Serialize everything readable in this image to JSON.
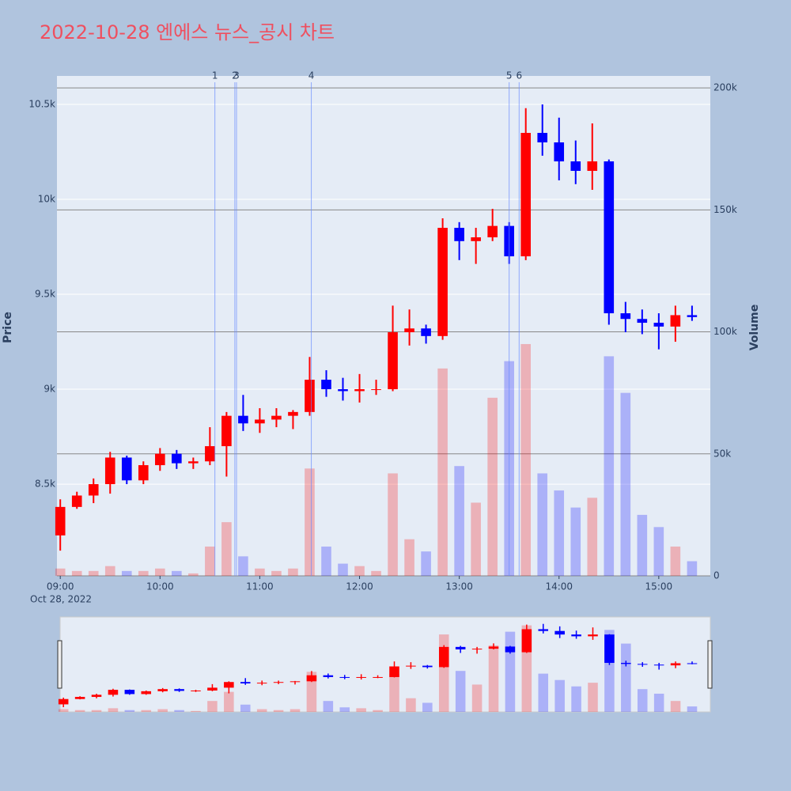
{
  "chart_data": {
    "type": "candlestick",
    "title": "2022-10-28 엔에스 뉴스_공시 차트",
    "x": [
      "2022-10-28 09:00",
      "2022-10-28 09:10",
      "2022-10-28 09:20",
      "2022-10-28 09:30",
      "2022-10-28 09:40",
      "2022-10-28 09:50",
      "2022-10-28 10:00",
      "2022-10-28 10:10",
      "2022-10-28 10:20",
      "2022-10-28 10:30",
      "2022-10-28 10:40",
      "2022-10-28 10:50",
      "2022-10-28 11:00",
      "2022-10-28 11:10",
      "2022-10-28 11:20",
      "2022-10-28 11:30",
      "2022-10-28 11:40",
      "2022-10-28 11:50",
      "2022-10-28 12:00",
      "2022-10-28 12:10",
      "2022-10-28 12:20",
      "2022-10-28 12:30",
      "2022-10-28 12:40",
      "2022-10-28 12:50",
      "2022-10-28 13:00",
      "2022-10-28 13:10",
      "2022-10-28 13:20",
      "2022-10-28 13:30",
      "2022-10-28 13:40",
      "2022-10-28 13:50",
      "2022-10-28 14:00",
      "2022-10-28 14:10",
      "2022-10-28 14:20",
      "2022-10-28 14:30",
      "2022-10-28 14:40",
      "2022-10-28 14:50",
      "2022-10-28 15:00",
      "2022-10-28 15:10",
      "2022-10-28 15:20"
    ],
    "open": [
      8230,
      8380,
      8440,
      8500,
      8640,
      8520,
      8600,
      8660,
      8610,
      8620,
      8700,
      8860,
      8820,
      8840,
      8860,
      8880,
      9050,
      9000,
      8990,
      9000,
      9000,
      9300,
      9320,
      9280,
      9850,
      9780,
      9800,
      9860,
      9700,
      10350,
      10300,
      10200,
      10150,
      10200,
      9400,
      9370,
      9350,
      9330,
      9390
    ],
    "high": [
      8420,
      8460,
      8530,
      8670,
      8650,
      8620,
      8690,
      8680,
      8640,
      8800,
      8880,
      8970,
      8900,
      8900,
      8890,
      9170,
      9100,
      9060,
      9080,
      9050,
      9440,
      9420,
      9340,
      9900,
      9880,
      9850,
      9950,
      9880,
      10480,
      10500,
      10430,
      10310,
      10400,
      10210,
      9460,
      9420,
      9400,
      9440,
      9440
    ],
    "low": [
      8150,
      8370,
      8400,
      8450,
      8500,
      8500,
      8570,
      8580,
      8580,
      8600,
      8540,
      8780,
      8770,
      8800,
      8790,
      8860,
      8960,
      8940,
      8930,
      8970,
      8990,
      9230,
      9240,
      9260,
      9680,
      9660,
      9780,
      9660,
      9680,
      10230,
      10100,
      10080,
      10050,
      9340,
      9300,
      9290,
      9210,
      9250,
      9360
    ],
    "close": [
      8380,
      8440,
      8500,
      8640,
      8520,
      8600,
      8660,
      8610,
      8620,
      8700,
      8860,
      8820,
      8840,
      8860,
      8880,
      9050,
      9000,
      8990,
      9000,
      9000,
      9300,
      9320,
      9280,
      9850,
      9780,
      9800,
      9860,
      9700,
      10350,
      10300,
      10200,
      10150,
      10200,
      9400,
      9370,
      9350,
      9330,
      9390,
      9380
    ],
    "volume": [
      3000,
      2000,
      2000,
      4000,
      2000,
      2000,
      3000,
      2000,
      1000,
      12000,
      22000,
      8000,
      3000,
      2000,
      3000,
      44000,
      12000,
      5000,
      4000,
      2000,
      42000,
      15000,
      10000,
      85000,
      45000,
      30000,
      73000,
      88000,
      95000,
      42000,
      35000,
      28000,
      32000,
      90000,
      75000,
      25000,
      20000,
      12000,
      6000
    ],
    "increasing_color": "#ff0000",
    "decreasing_color": "#0000ff",
    "xlim": [
      "2022-10-28 08:58",
      "2022-10-28 15:31"
    ],
    "xticks": [
      {
        "value": "2022-10-28 09:00",
        "label": "09:00"
      },
      {
        "value": "2022-10-28 10:00",
        "label": "10:00"
      },
      {
        "value": "2022-10-28 11:00",
        "label": "11:00"
      },
      {
        "value": "2022-10-28 12:00",
        "label": "12:00"
      },
      {
        "value": "2022-10-28 13:00",
        "label": "13:00"
      },
      {
        "value": "2022-10-28 14:00",
        "label": "14:00"
      },
      {
        "value": "2022-10-28 15:00",
        "label": "15:00"
      }
    ],
    "x_sublabel": "Oct 28, 2022",
    "ylim": [
      8017,
      10650
    ],
    "yticks": [
      {
        "value": 8500,
        "label": "8.5k"
      },
      {
        "value": 9000,
        "label": "9k"
      },
      {
        "value": 9500,
        "label": "9.5k"
      },
      {
        "value": 10000,
        "label": "10k"
      },
      {
        "value": 10500,
        "label": "10.5k"
      }
    ],
    "y2lim": [
      0,
      204900
    ],
    "y2ticks": [
      0,
      {
        "value": 50000,
        "label": "50k"
      },
      {
        "value": 100000,
        "label": "100k"
      },
      {
        "value": 150000,
        "label": "150k"
      },
      {
        "value": 200000,
        "label": "200k"
      }
    ],
    "y_label": "Price",
    "y2_label": "Volume",
    "events": [
      {
        "x": "2022-10-28 10:33",
        "label": "1"
      },
      {
        "x": "2022-10-28 10:45",
        "label": "2"
      },
      {
        "x": "2022-10-28 10:46",
        "label": "3"
      },
      {
        "x": "2022-10-28 11:31",
        "label": "4"
      },
      {
        "x": "2022-10-28 13:30",
        "label": "5"
      },
      {
        "x": "2022-10-28 13:36",
        "label": "6"
      }
    ],
    "grid": true
  }
}
